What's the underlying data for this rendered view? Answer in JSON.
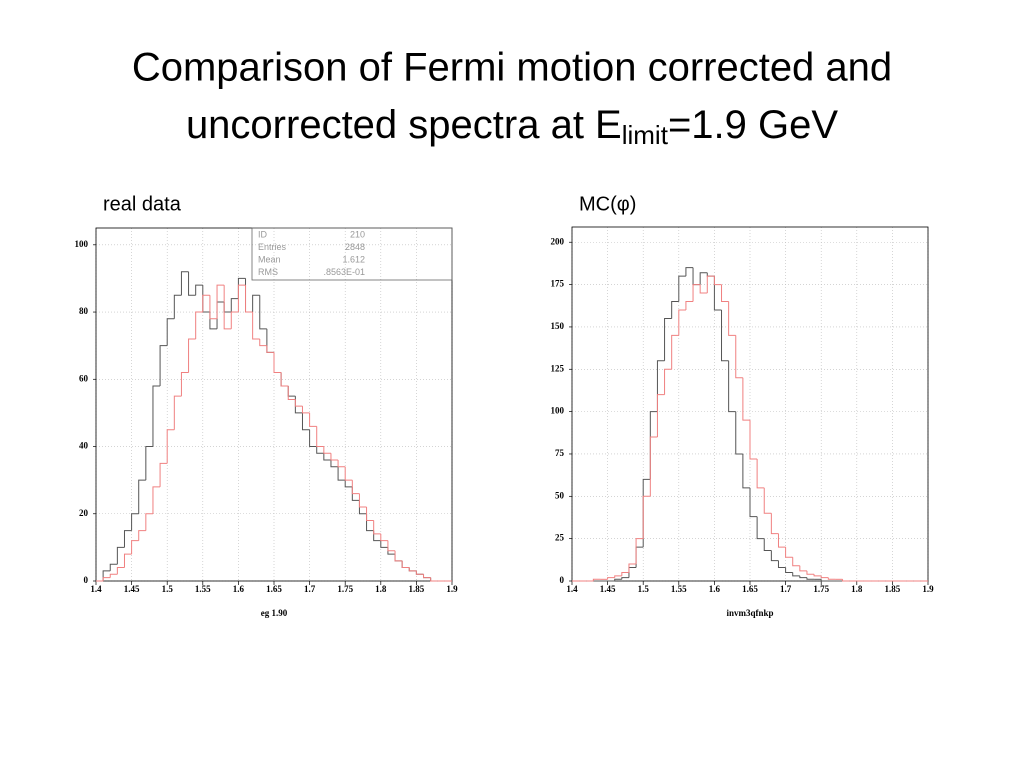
{
  "slide_title": {
    "line1": "Comparison of  Fermi motion corrected and",
    "line2_start": "uncorrected spectra at E",
    "line2_subscript": "limit",
    "line2_end": "=1.9 GeV"
  },
  "chart_data": [
    {
      "type": "histogram",
      "subtitle": "real data",
      "xlabel": "eg 1.90",
      "bins": [
        1.4,
        1.41,
        1.42,
        1.43,
        1.44,
        1.45,
        1.46,
        1.47,
        1.48,
        1.49,
        1.5,
        1.51,
        1.52,
        1.53,
        1.54,
        1.55,
        1.56,
        1.57,
        1.58,
        1.59,
        1.6,
        1.61,
        1.62,
        1.63,
        1.64,
        1.65,
        1.66,
        1.67,
        1.68,
        1.69,
        1.7,
        1.71,
        1.72,
        1.73,
        1.74,
        1.75,
        1.76,
        1.77,
        1.78,
        1.79,
        1.8,
        1.81,
        1.82,
        1.83,
        1.84,
        1.85,
        1.86,
        1.87,
        1.88,
        1.89,
        1.9
      ],
      "series": [
        {
          "color": "#555555",
          "values": [
            0,
            3,
            5,
            10,
            15,
            20,
            30,
            40,
            58,
            70,
            78,
            85,
            92,
            85,
            88,
            80,
            75,
            83,
            80,
            84,
            90,
            80,
            85,
            75,
            68,
            62,
            58,
            55,
            50,
            45,
            40,
            38,
            36,
            34,
            30,
            28,
            24,
            20,
            15,
            12,
            10,
            8,
            6,
            4,
            3,
            2,
            1,
            0,
            0,
            0
          ]
        },
        {
          "color": "#f08080",
          "values": [
            0,
            1,
            2,
            4,
            8,
            12,
            15,
            20,
            28,
            35,
            45,
            55,
            62,
            72,
            80,
            85,
            78,
            88,
            75,
            80,
            88,
            80,
            72,
            70,
            68,
            62,
            58,
            54,
            52,
            50,
            46,
            40,
            38,
            36,
            34,
            30,
            26,
            22,
            18,
            14,
            12,
            9,
            6,
            4,
            3,
            2,
            1,
            0,
            0,
            0
          ]
        }
      ],
      "xlim": [
        1.4,
        1.9
      ],
      "xticks": [
        1.4,
        1.45,
        1.5,
        1.55,
        1.6,
        1.65,
        1.7,
        1.75,
        1.8,
        1.85,
        1.9
      ],
      "ylim": [
        0,
        105
      ],
      "yticks": [
        0,
        20,
        40,
        60,
        80,
        100
      ],
      "grid": true,
      "stats": [
        {
          "label": "ID",
          "value": "210"
        },
        {
          "label": "Entries",
          "value": "2848"
        },
        {
          "label": "Mean",
          "value": "1.612"
        },
        {
          "label": "RMS",
          "value": ".8563E-01"
        }
      ]
    },
    {
      "type": "histogram",
      "subtitle": "MC(φ)",
      "xlabel": "invm3qfnkp",
      "bins": [
        1.4,
        1.41,
        1.42,
        1.43,
        1.44,
        1.45,
        1.46,
        1.47,
        1.48,
        1.49,
        1.5,
        1.51,
        1.52,
        1.53,
        1.54,
        1.55,
        1.56,
        1.57,
        1.58,
        1.59,
        1.6,
        1.61,
        1.62,
        1.63,
        1.64,
        1.65,
        1.66,
        1.67,
        1.68,
        1.69,
        1.7,
        1.71,
        1.72,
        1.73,
        1.74,
        1.75,
        1.76,
        1.77,
        1.78,
        1.79,
        1.8,
        1.81,
        1.82,
        1.83,
        1.84,
        1.85,
        1.86,
        1.87,
        1.88,
        1.89,
        1.9
      ],
      "series": [
        {
          "color": "#555555",
          "values": [
            0,
            0,
            0,
            0,
            0,
            0,
            1,
            2,
            8,
            20,
            60,
            100,
            130,
            155,
            165,
            180,
            185,
            175,
            182,
            180,
            160,
            130,
            100,
            75,
            55,
            38,
            25,
            18,
            12,
            8,
            5,
            3,
            2,
            1,
            1,
            0,
            0,
            0,
            0,
            0,
            0,
            0,
            0,
            0,
            0,
            0,
            0,
            0,
            0,
            0
          ]
        },
        {
          "color": "#f08080",
          "values": [
            0,
            0,
            0,
            1,
            1,
            2,
            3,
            5,
            10,
            25,
            50,
            85,
            110,
            125,
            145,
            160,
            165,
            175,
            170,
            180,
            175,
            165,
            145,
            120,
            95,
            72,
            55,
            40,
            28,
            20,
            14,
            9,
            6,
            4,
            3,
            2,
            1,
            1,
            0,
            0,
            0,
            0,
            0,
            0,
            0,
            0,
            0,
            0,
            0,
            0
          ]
        }
      ],
      "xlim": [
        1.4,
        1.9
      ],
      "xticks": [
        1.4,
        1.45,
        1.5,
        1.55,
        1.6,
        1.65,
        1.7,
        1.75,
        1.8,
        1.85,
        1.9
      ],
      "ylim": [
        0,
        209
      ],
      "yticks": [
        0,
        25,
        50,
        75,
        100,
        125,
        150,
        175,
        200
      ],
      "grid": true
    }
  ]
}
